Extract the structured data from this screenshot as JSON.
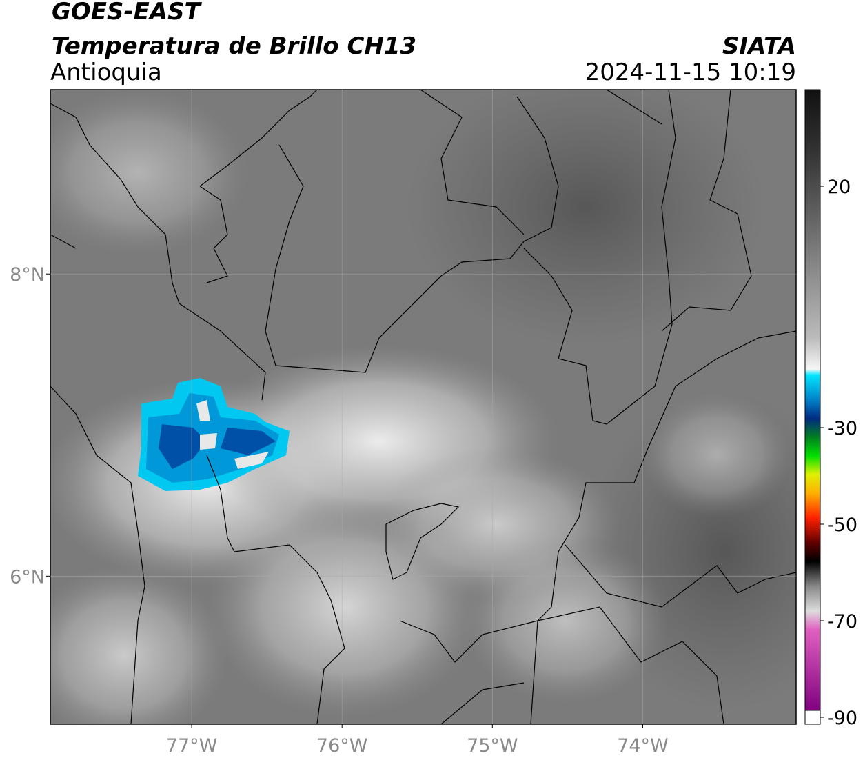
{
  "header": {
    "satellite": "GOES-EAST",
    "product": "Temperatura de Brillo CH13",
    "region": "Antioquia",
    "agency": "SIATA",
    "datetime": "2024-11-15 10:19"
  },
  "map": {
    "xlim": [
      -77.94,
      -72.98
    ],
    "ylim": [
      5.02,
      9.22
    ],
    "xticks": [
      {
        "value": -77,
        "label": "77°W"
      },
      {
        "value": -76,
        "label": "76°W"
      },
      {
        "value": -75,
        "label": "75°W"
      },
      {
        "value": -74,
        "label": "74°W"
      }
    ],
    "yticks": [
      {
        "value": 6,
        "label": "6°N"
      },
      {
        "value": 8,
        "label": "8°N"
      }
    ],
    "grid": true
  },
  "colorbar": {
    "clim": [
      -90,
      40
    ],
    "ticks": [
      -90,
      -70,
      -50,
      -30,
      20
    ]
  }
}
